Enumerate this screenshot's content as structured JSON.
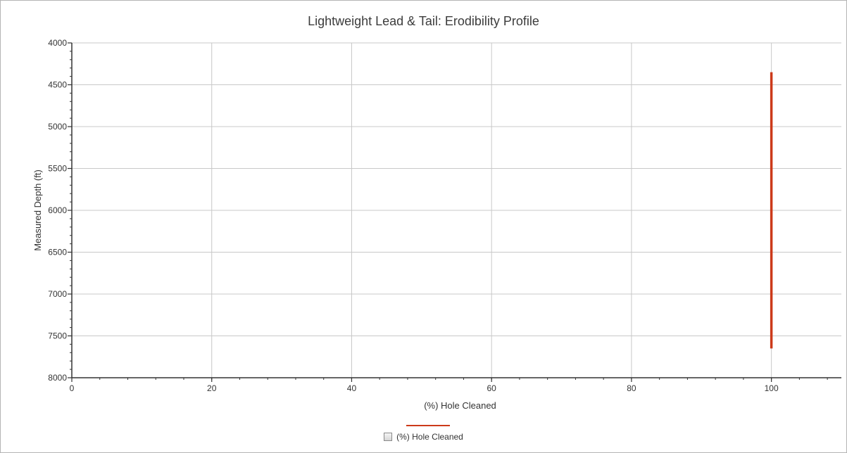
{
  "chart_data": {
    "type": "line",
    "title": "Lightweight Lead & Tail: Erodibility Profile",
    "xlabel": "(%) Hole Cleaned",
    "ylabel": "Measured Depth (ft)",
    "xlim": [
      0,
      110
    ],
    "ylim": [
      4000,
      8000
    ],
    "y_inverted": true,
    "x_ticks": [
      0,
      20,
      40,
      60,
      80,
      100
    ],
    "y_ticks": [
      4000,
      4500,
      5000,
      5500,
      6000,
      6500,
      7000,
      7500,
      8000
    ],
    "grid": true,
    "legend_position": "bottom-center",
    "series": [
      {
        "name": "(%) Hole Cleaned",
        "color": "#cc3a1a",
        "x": [
          100,
          100
        ],
        "y": [
          4350,
          7650
        ]
      }
    ]
  },
  "colors": {
    "grid": "#c8c8c8",
    "axis": "#333333"
  }
}
